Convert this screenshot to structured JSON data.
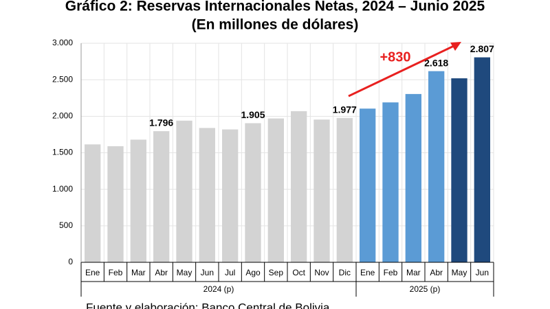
{
  "chart_data": {
    "type": "bar",
    "title": "Gráfico 2: Reservas Internacionales Netas, 2024 – Junio 2025",
    "subtitle": "(En millones de dólares)",
    "categories": [
      "Ene",
      "Feb",
      "Mar",
      "Abr",
      "May",
      "Jun",
      "Jul",
      "Ago",
      "Sep",
      "Oct",
      "Nov",
      "Dic",
      "Ene",
      "Feb",
      "Mar",
      "Abr",
      "May",
      "Jun"
    ],
    "groups": [
      {
        "label": "2024 (p)",
        "count": 12
      },
      {
        "label": "2025 (p)",
        "count": 6
      }
    ],
    "values": [
      1615,
      1590,
      1680,
      1796,
      1940,
      1840,
      1820,
      1905,
      1970,
      2070,
      1955,
      1977,
      2105,
      2190,
      2305,
      2618,
      2520,
      2807
    ],
    "value_labels": [
      null,
      null,
      null,
      "1.796",
      null,
      null,
      null,
      "1.905",
      null,
      null,
      null,
      "1.977",
      null,
      null,
      null,
      "2.618",
      null,
      "2.807"
    ],
    "colors": [
      "#d3d3d3",
      "#d3d3d3",
      "#d3d3d3",
      "#d3d3d3",
      "#d3d3d3",
      "#d3d3d3",
      "#d3d3d3",
      "#d3d3d3",
      "#d3d3d3",
      "#d3d3d3",
      "#d3d3d3",
      "#d3d3d3",
      "#5b9bd5",
      "#5b9bd5",
      "#5b9bd5",
      "#5b9bd5",
      "#1f497d",
      "#1f497d"
    ],
    "ylim": [
      0,
      3000
    ],
    "yticks": [
      0,
      500,
      {
        "value": 1000,
        "label": "1.000"
      },
      {
        "value": 1500,
        "label": "1.500"
      },
      {
        "value": 2000,
        "label": "2.000"
      },
      {
        "value": 2500,
        "label": "2.500"
      },
      {
        "value": 3000,
        "label": "3.000"
      }
    ],
    "grid": true,
    "annotations": [
      {
        "text": "+830",
        "color": "#e8201f"
      }
    ],
    "source": "Fuente y elaboración: Banco Central de Bolivia"
  }
}
